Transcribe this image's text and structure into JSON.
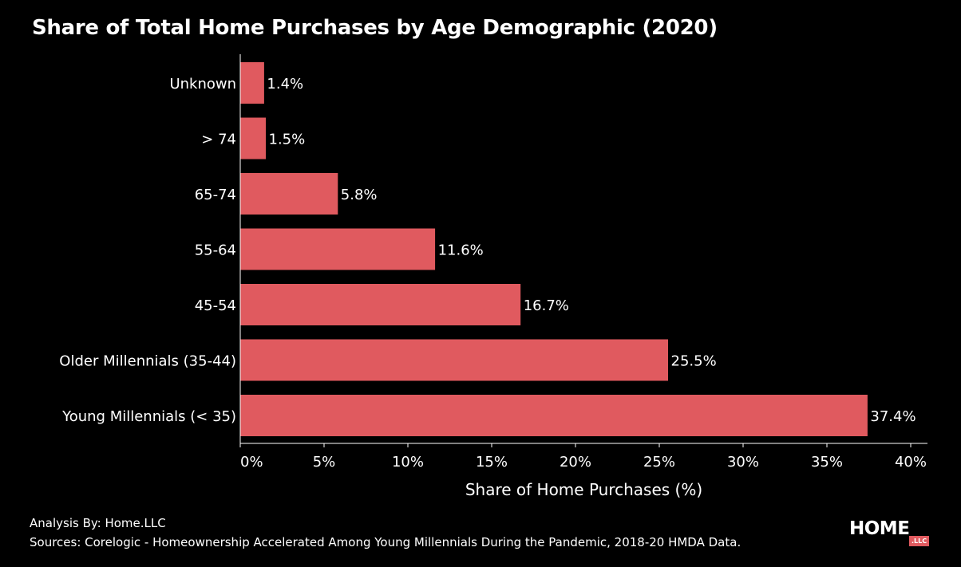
{
  "title": "Share of Total Home Purchases by Age Demographic (2020)",
  "footer": {
    "analysis": "Analysis By: Home.LLC",
    "sources": "Sources: Corelogic - Homeownership Accelerated Among Young Millennials During the Pandemic, 2018-20 HMDA Data."
  },
  "logo": {
    "main": "HOME",
    "badge": ".LLC"
  },
  "colors": {
    "background": "#000000",
    "bar": "#e05a5f",
    "text": "#ffffff"
  },
  "chart_data": {
    "type": "bar",
    "orientation": "horizontal",
    "title": "Share of Total Home Purchases by Age Demographic (2020)",
    "xlabel": "Share of Home Purchases (%)",
    "ylabel": "",
    "categories": [
      "Unknown",
      "> 74",
      "65-74",
      "55-64",
      "45-54",
      "Older Millennials (35-44)",
      "Young Millennials (< 35)"
    ],
    "values": [
      1.4,
      1.5,
      5.8,
      11.6,
      16.7,
      25.5,
      37.4
    ],
    "value_labels": [
      "1.4%",
      "1.5%",
      "5.8%",
      "11.6%",
      "16.7%",
      "25.5%",
      "37.4%"
    ],
    "xlim": [
      0,
      41
    ],
    "xticks": [
      0,
      5,
      10,
      15,
      20,
      25,
      30,
      35,
      40
    ],
    "xtick_labels": [
      "0%",
      "5%",
      "10%",
      "15%",
      "20%",
      "25%",
      "30%",
      "35%",
      "40%"
    ],
    "grid": false,
    "legend": "none"
  }
}
